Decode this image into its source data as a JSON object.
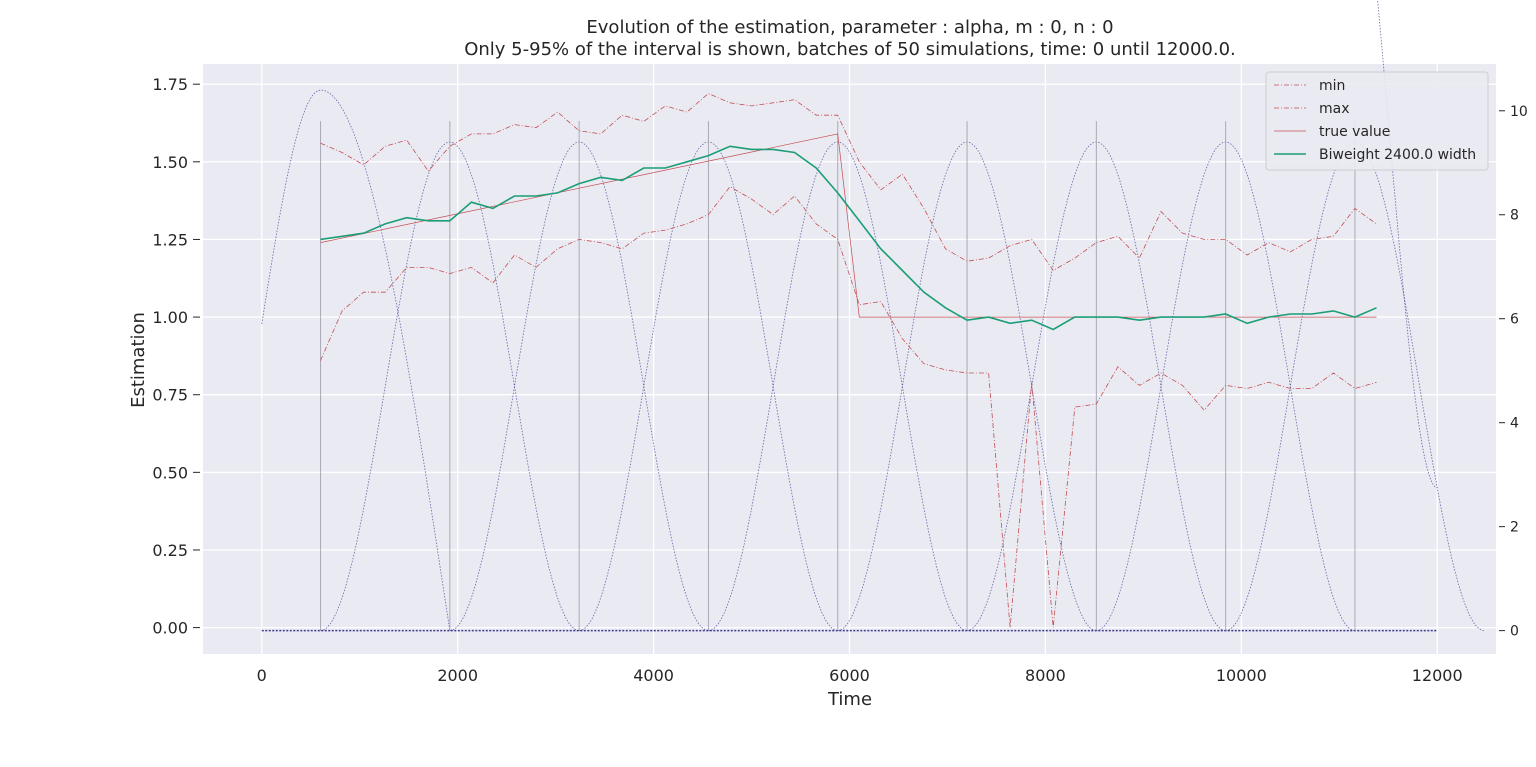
{
  "chart_data": {
    "type": "line",
    "title": "Evolution of the estimation, parameter : alpha, m : 0, n : 0",
    "subtitle": "Only 5-95% of the interval is shown, batches of 50 simulations, time: 0 until 12000.0.",
    "xlabel": "Time",
    "ylabel": "Estimation",
    "xlim": [
      -600,
      12600
    ],
    "ylim": [
      -0.085,
      1.815
    ],
    "y2lim": [
      -0.45,
      10.9
    ],
    "xticks": [
      0,
      2000,
      4000,
      6000,
      8000,
      10000,
      12000
    ],
    "xtick_labels": [
      "0",
      "2000",
      "4000",
      "6000",
      "8000",
      "10000",
      "12000"
    ],
    "yticks": [
      0.0,
      0.25,
      0.5,
      0.75,
      1.0,
      1.25,
      1.5,
      1.75
    ],
    "ytick_labels": [
      "0.00",
      "0.25",
      "0.50",
      "0.75",
      "1.00",
      "1.25",
      "1.50",
      "1.75"
    ],
    "y2ticks": [
      0,
      2,
      4,
      6,
      8,
      10
    ],
    "y2tick_labels": [
      "0",
      "2",
      "4",
      "6",
      "8",
      "10"
    ],
    "grid": true,
    "legend_position": "top-right",
    "colors": {
      "background": "#eaeaf2",
      "grid": "#ffffff",
      "min": "#c44e52",
      "max": "#c44e52",
      "true_value": "#c44e52",
      "biweight": "#1b9e77",
      "kernel": "#3b3b8f",
      "vline": "#9a9aa8"
    },
    "x": [
      600,
      820,
      1040,
      1260,
      1480,
      1700,
      1920,
      2140,
      2360,
      2580,
      2800,
      3020,
      3240,
      3460,
      3680,
      3900,
      4120,
      4340,
      4560,
      4780,
      5000,
      5220,
      5440,
      5660,
      5880,
      6100,
      6320,
      6540,
      6760,
      6980,
      7200,
      7420,
      7640,
      7860,
      8080,
      8300,
      8520,
      8740,
      8960,
      9180,
      9400,
      9620,
      9840,
      10060,
      10280,
      10500,
      10720,
      10940,
      11160,
      11380
    ],
    "series": [
      {
        "name": "min",
        "style": "dashdot",
        "values": [
          0.86,
          1.02,
          1.08,
          1.08,
          1.16,
          1.16,
          1.14,
          1.16,
          1.11,
          1.2,
          1.16,
          1.22,
          1.25,
          1.24,
          1.22,
          1.27,
          1.28,
          1.3,
          1.33,
          1.42,
          1.38,
          1.33,
          1.39,
          1.3,
          1.25,
          1.04,
          1.05,
          0.93,
          0.85,
          0.83,
          0.82,
          0.82,
          0.0,
          0.79,
          0.0,
          0.71,
          0.72,
          0.84,
          0.78,
          0.82,
          0.78,
          0.7,
          0.78,
          0.77,
          0.79,
          0.77,
          0.77,
          0.82,
          0.77,
          0.79
        ]
      },
      {
        "name": "max",
        "style": "dashdot",
        "values": [
          1.56,
          1.53,
          1.49,
          1.55,
          1.57,
          1.47,
          1.55,
          1.59,
          1.59,
          1.62,
          1.61,
          1.66,
          1.6,
          1.59,
          1.65,
          1.63,
          1.68,
          1.66,
          1.72,
          1.69,
          1.68,
          1.69,
          1.7,
          1.65,
          1.65,
          1.5,
          1.41,
          1.46,
          1.35,
          1.22,
          1.18,
          1.19,
          1.23,
          1.25,
          1.15,
          1.19,
          1.24,
          1.26,
          1.19,
          1.34,
          1.27,
          1.25,
          1.25,
          1.2,
          1.24,
          1.21,
          1.25,
          1.26,
          1.35,
          1.3
        ]
      },
      {
        "name": "true value",
        "style": "solid-thin",
        "x": [
          600,
          5880,
          6100,
          11380
        ],
        "values": [
          1.24,
          1.59,
          1.0,
          1.0
        ]
      },
      {
        "name": "Biweight 2400.0 width",
        "style": "solid",
        "values": [
          1.25,
          1.26,
          1.27,
          1.3,
          1.32,
          1.31,
          1.31,
          1.37,
          1.35,
          1.39,
          1.39,
          1.4,
          1.43,
          1.45,
          1.44,
          1.48,
          1.48,
          1.5,
          1.52,
          1.55,
          1.54,
          1.54,
          1.53,
          1.48,
          1.4,
          1.31,
          1.22,
          1.15,
          1.08,
          1.03,
          0.99,
          1.0,
          0.98,
          0.99,
          0.96,
          1.0,
          1.0,
          1.0,
          0.99,
          1.0,
          1.0,
          1.0,
          1.01,
          0.98,
          1.0,
          1.01,
          1.01,
          1.02,
          1.0,
          1.03
        ]
      }
    ],
    "kernels": {
      "axis": "right",
      "first": {
        "start": 0,
        "peak": 600,
        "end": 1920,
        "peak_value": 10.4,
        "start_value": 5.9
      },
      "repeating": {
        "starts": [
          600,
          1920,
          3240,
          4560,
          5880,
          7200,
          8520,
          9840
        ],
        "width": 2640,
        "peak_value": 9.4
      },
      "last": {
        "start": 11160,
        "end": 12000,
        "end_value": 2.75
      },
      "vlines": [
        600,
        1920,
        3240,
        4560,
        5880,
        7200,
        8520,
        9840,
        11160
      ],
      "vline_top": 9.8
    }
  }
}
